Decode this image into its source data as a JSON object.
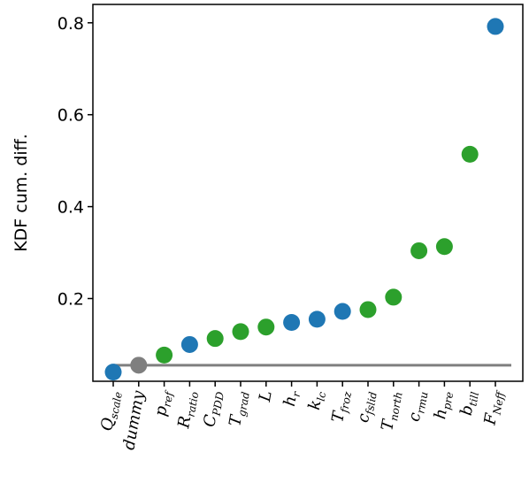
{
  "chart_data": {
    "type": "scatter",
    "ylabel": "KDF cum. diff.",
    "ylim": [
      0.02,
      0.84
    ],
    "yticks": [
      0.2,
      0.4,
      0.6,
      0.8
    ],
    "ytick_labels": [
      "0.2",
      "0.4",
      "0.6",
      "0.8"
    ],
    "grid": false,
    "colors": {
      "blue": "#1f77b4",
      "green": "#2ca02c",
      "gray": "#7f7f7f"
    },
    "threshold": 0.055,
    "points": [
      {
        "base": "Q",
        "sub": "scale",
        "value": 0.04,
        "color": "blue"
      },
      {
        "base": "dummy",
        "sub": "",
        "value": 0.055,
        "color": "gray"
      },
      {
        "base": "p",
        "sub": "ref",
        "value": 0.077,
        "color": "green"
      },
      {
        "base": "R",
        "sub": "ratio",
        "value": 0.1,
        "color": "blue"
      },
      {
        "base": "C",
        "sub": "PDD",
        "value": 0.113,
        "color": "green"
      },
      {
        "base": "T",
        "sub": "grad",
        "value": 0.128,
        "color": "green"
      },
      {
        "base": "L",
        "sub": "",
        "value": 0.138,
        "color": "green"
      },
      {
        "base": "h",
        "sub": "r",
        "value": 0.148,
        "color": "blue"
      },
      {
        "base": "k",
        "sub": "lc",
        "value": 0.155,
        "color": "blue"
      },
      {
        "base": "T",
        "sub": "froz",
        "value": 0.172,
        "color": "blue"
      },
      {
        "base": "c",
        "sub": "fslid",
        "value": 0.176,
        "color": "green"
      },
      {
        "base": "T",
        "sub": "north",
        "value": 0.203,
        "color": "green"
      },
      {
        "base": "c",
        "sub": "rmu",
        "value": 0.304,
        "color": "green"
      },
      {
        "base": "h",
        "sub": "pre",
        "value": 0.313,
        "color": "green"
      },
      {
        "base": "b",
        "sub": "till",
        "value": 0.514,
        "color": "green"
      },
      {
        "base": "F",
        "sub": "Neff",
        "value": 0.792,
        "color": "blue"
      }
    ]
  }
}
